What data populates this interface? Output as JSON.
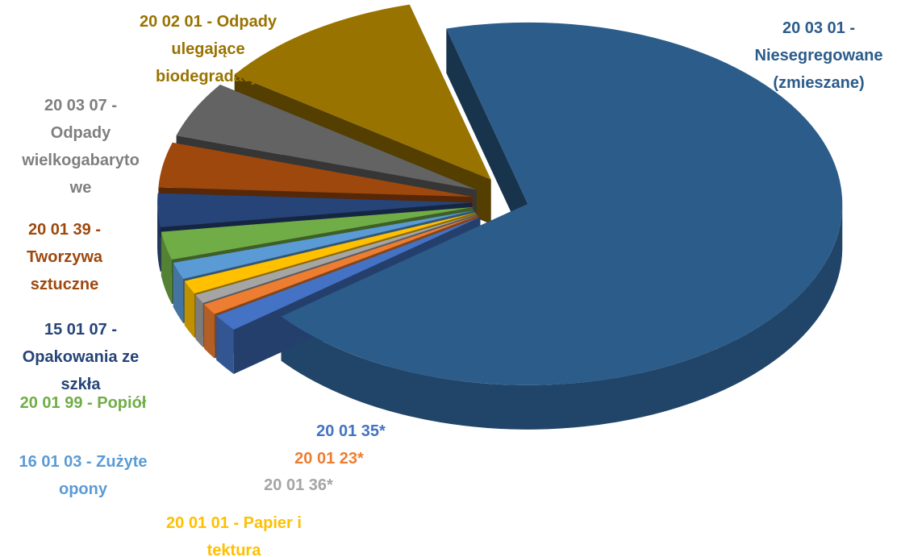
{
  "chart_data": {
    "type": "pie",
    "categories": [
      "20 03 01 -\nNiesegregowane\n(zmieszane)",
      "20 01 35*",
      "20 01 23*",
      "20 01 36*",
      "20 01 01 - Papier i\ntektura",
      "16 01 03 - Zużyte\nopony",
      "20 01 99 - Popiół",
      "15 01 07 -\nOpakowania ze\nszkła",
      "20 01 39 -\nTworzywa\nsztuczne",
      "20 03 07 -\nOdpady\nwielkogabaryto\nwe",
      "20 02 01 - Odpady\nulegające\nbiodegradacji"
    ],
    "values": [
      68.5,
      1.5,
      1,
      0.8,
      1.2,
      1.5,
      2.5,
      3,
      4,
      5,
      11
    ],
    "colors": [
      "#2b5c8a",
      "#4472c4",
      "#ed7d31",
      "#a5a5a5",
      "#ffc000",
      "#5b9bd5",
      "#70ad47",
      "#264478",
      "#9e480e",
      "#636363",
      "#997300"
    ]
  }
}
